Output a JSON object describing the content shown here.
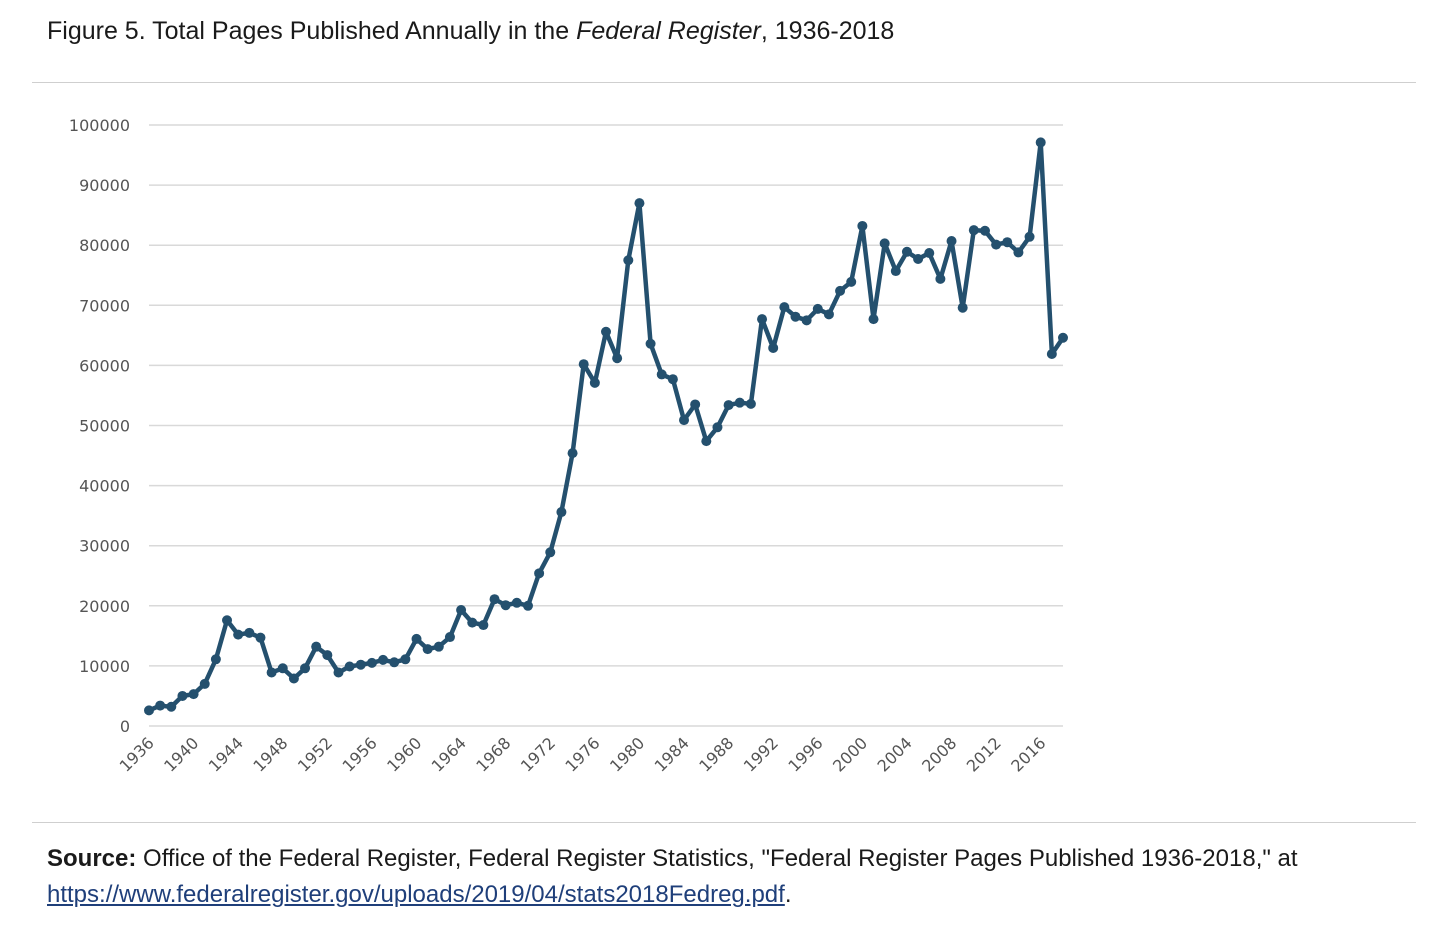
{
  "figure": {
    "title_prefix": "Figure 5. Total Pages Published Annually in the ",
    "title_italic": "Federal Register",
    "title_suffix": ", 1936-2018"
  },
  "source": {
    "label": "Source:",
    "text": " Office of the Federal Register, Federal Register Statistics, \"Federal Register Pages Published 1936-2018,\" at ",
    "link_text": "https://www.federalregister.gov/uploads/2019/04/stats2018Fedreg.pdf",
    "end": "."
  },
  "colors": {
    "line": "#24506e",
    "grid": "#d9d9d9",
    "axis_text": "#555555"
  },
  "chart_data": {
    "type": "line",
    "title": "Figure 5. Total Pages Published Annually in the Federal Register, 1936-2018",
    "xlabel": "",
    "ylabel": "",
    "ylim": [
      0,
      100000
    ],
    "y_ticks": [
      0,
      10000,
      20000,
      30000,
      40000,
      50000,
      60000,
      70000,
      80000,
      90000,
      100000
    ],
    "x_tick_labels": [
      "1936",
      "1940",
      "1944",
      "1948",
      "1952",
      "1956",
      "1960",
      "1964",
      "1968",
      "1972",
      "1976",
      "1980",
      "1984",
      "1988",
      "1992",
      "1996",
      "2000",
      "2004",
      "2008",
      "2012",
      "2016"
    ],
    "grid": true,
    "legend": "none",
    "x": [
      1936,
      1937,
      1938,
      1939,
      1940,
      1941,
      1942,
      1943,
      1944,
      1945,
      1946,
      1947,
      1948,
      1949,
      1950,
      1951,
      1952,
      1953,
      1954,
      1955,
      1956,
      1957,
      1958,
      1959,
      1960,
      1961,
      1962,
      1963,
      1964,
      1965,
      1966,
      1967,
      1968,
      1969,
      1970,
      1971,
      1972,
      1973,
      1974,
      1975,
      1976,
      1977,
      1978,
      1979,
      1980,
      1981,
      1982,
      1983,
      1984,
      1985,
      1986,
      1987,
      1988,
      1989,
      1990,
      1991,
      1992,
      1993,
      1994,
      1995,
      1996,
      1997,
      1998,
      1999,
      2000,
      2001,
      2002,
      2003,
      2004,
      2005,
      2006,
      2007,
      2008,
      2009,
      2010,
      2011,
      2012,
      2013,
      2014,
      2015,
      2016,
      2017,
      2018
    ],
    "values": [
      2600,
      3400,
      3200,
      5000,
      5300,
      7000,
      11100,
      17600,
      15200,
      15500,
      14700,
      8900,
      9600,
      7900,
      9600,
      13200,
      11800,
      8900,
      9900,
      10200,
      10500,
      11000,
      10600,
      11100,
      14500,
      12800,
      13200,
      14800,
      19300,
      17200,
      16800,
      21100,
      20100,
      20500,
      20000,
      25400,
      28900,
      35600,
      45400,
      60200,
      57100,
      65600,
      61200,
      77500,
      87000,
      63600,
      58500,
      57700,
      50900,
      53500,
      47400,
      49700,
      53400,
      53800,
      53600,
      67700,
      62900,
      69700,
      68100,
      67500,
      69400,
      68500,
      72400,
      73900,
      83200,
      67700,
      80300,
      75700,
      78900,
      77700,
      78700,
      74400,
      80700,
      69600,
      82500,
      82400,
      80100,
      80500,
      78800,
      81400,
      97100,
      61900,
      64600
    ]
  }
}
